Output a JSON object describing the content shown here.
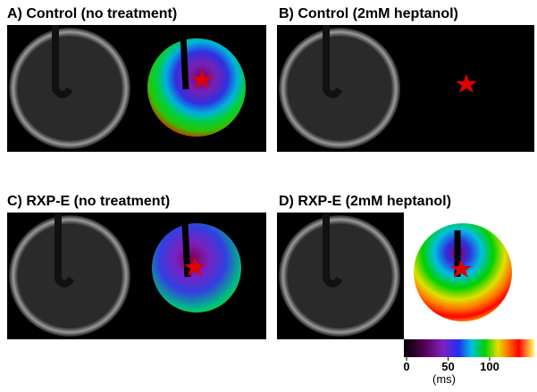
{
  "panels": [
    {
      "title": "A) Control (no treatment)"
    },
    {
      "title": "B) Control (2mM heptanol)"
    },
    {
      "title": "C) RXP-E (no treatment)"
    },
    {
      "title": "D) RXP-E (2mM heptanol)"
    }
  ],
  "colorbar": {
    "ticks": [
      0,
      50,
      100
    ],
    "unit": "(ms)"
  }
}
